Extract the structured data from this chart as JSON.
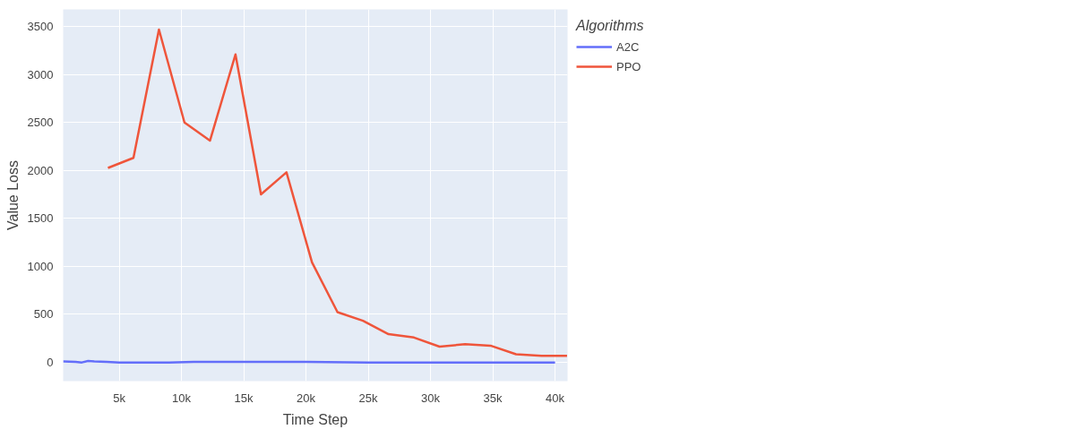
{
  "chart_data": {
    "type": "line",
    "xlabel": "Time Step",
    "ylabel": "Value Loss",
    "legend_title": "Algorithms",
    "legend": "right",
    "grid": true,
    "xlim": [
      500,
      41000
    ],
    "ylim": [
      -200,
      3680
    ],
    "xticks": [
      {
        "value": 5000,
        "label": "5k"
      },
      {
        "value": 10000,
        "label": "10k"
      },
      {
        "value": 15000,
        "label": "15k"
      },
      {
        "value": 20000,
        "label": "20k"
      },
      {
        "value": 25000,
        "label": "25k"
      },
      {
        "value": 30000,
        "label": "30k"
      },
      {
        "value": 35000,
        "label": "35k"
      },
      {
        "value": 40000,
        "label": "40k"
      }
    ],
    "yticks": [
      0,
      500,
      1000,
      1500,
      2000,
      2500,
      3000,
      3500
    ],
    "series": [
      {
        "name": "A2C",
        "color": "#636efa",
        "x": [
          500,
          1000,
          1500,
          2000,
          2500,
          3000,
          4000,
          5000,
          7000,
          9000,
          11000,
          13000,
          15000,
          20000,
          25000,
          30000,
          35000,
          40000
        ],
        "values": [
          5,
          3,
          0,
          -5,
          10,
          5,
          0,
          -5,
          -5,
          -5,
          0,
          0,
          0,
          0,
          -5,
          -5,
          -5,
          -5
        ]
      },
      {
        "name": "PPO",
        "color": "#ef553b",
        "x": [
          4096,
          6144,
          8192,
          10240,
          12288,
          14336,
          16384,
          18432,
          20480,
          22528,
          24576,
          26624,
          28672,
          30720,
          32768,
          34816,
          36864,
          38912,
          40960
        ],
        "values": [
          2025,
          2130,
          3470,
          2500,
          2310,
          3210,
          1750,
          1980,
          1040,
          520,
          430,
          290,
          255,
          160,
          185,
          170,
          80,
          65,
          65
        ]
      }
    ]
  }
}
